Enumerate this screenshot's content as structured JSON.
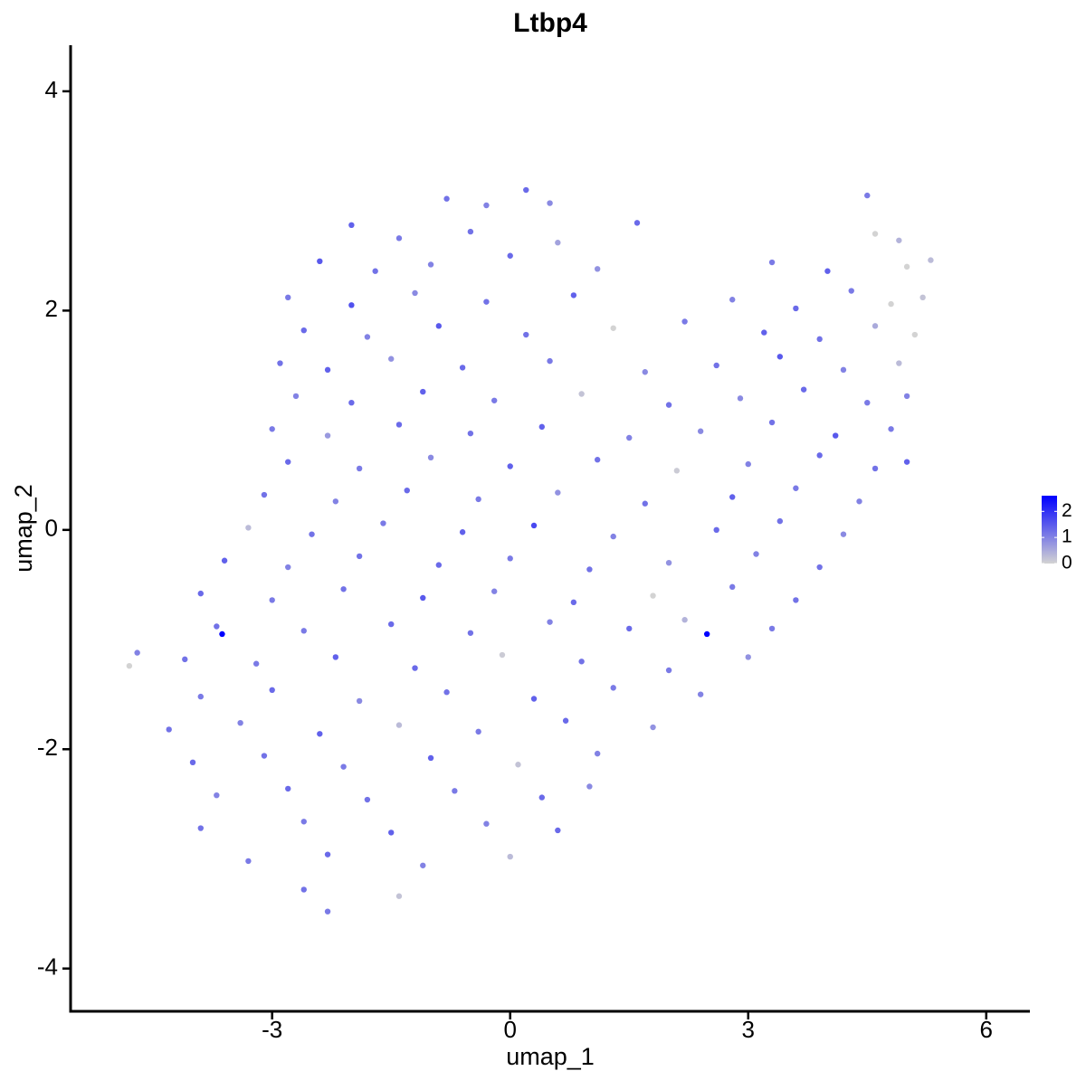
{
  "chart_data": {
    "type": "scatter",
    "title": "Ltbp4",
    "xlabel": "umap_1",
    "ylabel": "umap_2",
    "xlim": [
      -5.54,
      6.55
    ],
    "ylim": [
      -4.39,
      4.42
    ],
    "xticks": [
      -3,
      0,
      3,
      6
    ],
    "yticks": [
      -4,
      -2,
      0,
      2,
      4
    ],
    "color_low": "#d3d3d3",
    "color_high": "#0000ff",
    "color_lim": [
      0,
      2.6
    ],
    "color_ticks": [
      0,
      1,
      2
    ],
    "x": [
      -0.8,
      -0.3,
      0.2,
      0.5,
      4.5,
      -2.0,
      -1.4,
      -0.5,
      0.6,
      1.6,
      4.6,
      4.9,
      -2.4,
      -1.7,
      -1.0,
      0.0,
      1.1,
      3.3,
      4.0,
      5.0,
      5.3,
      -2.8,
      -2.0,
      -1.2,
      -0.3,
      0.8,
      2.8,
      3.6,
      4.3,
      4.8,
      5.2,
      -2.6,
      -1.8,
      -0.9,
      0.2,
      1.3,
      2.2,
      3.2,
      3.9,
      4.6,
      5.1,
      -2.9,
      -2.3,
      -1.5,
      -0.6,
      0.5,
      1.7,
      2.6,
      3.4,
      4.2,
      4.9,
      -2.7,
      -2.0,
      -1.1,
      -0.2,
      0.9,
      2.0,
      2.9,
      3.7,
      4.5,
      5.0,
      -3.0,
      -2.3,
      -1.4,
      -0.5,
      0.4,
      1.5,
      2.4,
      3.3,
      4.1,
      4.8,
      -2.8,
      -1.9,
      -1.0,
      0.0,
      1.1,
      2.1,
      3.0,
      3.9,
      4.6,
      5.0,
      -3.1,
      -2.2,
      -1.3,
      -0.4,
      0.6,
      1.7,
      2.8,
      3.6,
      4.4,
      -3.3,
      -2.5,
      -1.6,
      -0.6,
      0.3,
      1.3,
      2.6,
      3.4,
      4.2,
      -3.6,
      -2.8,
      -1.9,
      -0.9,
      0.0,
      1.0,
      2.0,
      3.1,
      3.9,
      -3.9,
      -3.0,
      -2.1,
      -1.1,
      -0.2,
      0.8,
      1.8,
      2.8,
      3.6,
      -3.7,
      -3.63,
      -2.6,
      -1.5,
      -0.5,
      0.5,
      1.5,
      2.2,
      2.48,
      3.3,
      -4.8,
      -4.7,
      -4.1,
      -3.2,
      -2.2,
      -1.2,
      -0.1,
      0.9,
      2.0,
      3.0,
      -3.9,
      -3.0,
      -1.9,
      -0.8,
      0.3,
      1.3,
      2.4,
      -4.3,
      -3.4,
      -2.4,
      -1.4,
      -0.4,
      0.7,
      1.8,
      -4.0,
      -3.1,
      -2.1,
      -1.0,
      0.1,
      1.1,
      -3.7,
      -2.8,
      -1.8,
      -0.7,
      0.4,
      1.0,
      -3.9,
      -2.6,
      -1.5,
      -0.3,
      0.6,
      -3.3,
      -2.3,
      -1.1,
      0.0,
      -2.6,
      -1.4,
      -2.3
    ],
    "values": [
      3.02,
      2.96,
      3.1,
      2.98,
      3.05,
      2.78,
      2.66,
      2.72,
      2.62,
      2.8,
      2.7,
      2.64,
      2.45,
      2.36,
      2.42,
      2.5,
      2.38,
      2.44,
      2.36,
      2.4,
      2.46,
      2.12,
      2.05,
      2.16,
      2.08,
      2.14,
      2.1,
      2.02,
      2.18,
      2.06,
      2.12,
      1.82,
      1.76,
      1.86,
      1.78,
      1.84,
      1.9,
      1.8,
      1.74,
      1.86,
      1.78,
      1.52,
      1.46,
      1.56,
      1.48,
      1.54,
      1.44,
      1.5,
      1.58,
      1.46,
      1.52,
      1.22,
      1.16,
      1.26,
      1.18,
      1.24,
      1.14,
      1.2,
      1.28,
      1.16,
      1.22,
      0.92,
      0.86,
      0.96,
      0.88,
      0.94,
      0.84,
      0.9,
      0.98,
      0.86,
      0.92,
      0.62,
      0.56,
      0.66,
      0.58,
      0.64,
      0.54,
      0.6,
      0.68,
      0.56,
      0.62,
      0.32,
      0.26,
      0.36,
      0.28,
      0.34,
      0.24,
      0.3,
      0.38,
      0.26,
      0.02,
      -0.04,
      0.06,
      -0.02,
      0.04,
      -0.06,
      0.0,
      0.08,
      -0.04,
      -0.28,
      -0.34,
      -0.24,
      -0.32,
      -0.26,
      -0.36,
      -0.3,
      -0.22,
      -0.34,
      -0.58,
      -0.64,
      -0.54,
      -0.62,
      -0.56,
      -0.66,
      -0.6,
      -0.52,
      -0.64,
      -0.88,
      -0.95,
      -0.92,
      -0.86,
      -0.94,
      -0.84,
      -0.9,
      -0.82,
      -0.95,
      -0.9,
      -1.24,
      -1.12,
      -1.18,
      -1.22,
      -1.16,
      -1.26,
      -1.14,
      -1.2,
      -1.28,
      -1.16,
      -1.52,
      -1.46,
      -1.56,
      -1.48,
      -1.54,
      -1.44,
      -1.5,
      -1.82,
      -1.76,
      -1.86,
      -1.78,
      -1.84,
      -1.74,
      -1.8,
      -2.12,
      -2.06,
      -2.16,
      -2.08,
      -2.14,
      -2.04,
      -2.42,
      -2.36,
      -2.46,
      -2.38,
      -2.44,
      -2.34,
      -2.72,
      -2.66,
      -2.76,
      -2.68,
      -2.74,
      -3.02,
      -2.96,
      -3.06,
      -2.98,
      -3.28,
      -3.34,
      -3.48
    ],
    "color_values": [
      1.2,
      1.0,
      1.3,
      0.9,
      1.1,
      1.4,
      1.1,
      1.2,
      0.6,
      1.3,
      0.0,
      0.4,
      1.5,
      1.2,
      1.0,
      1.3,
      0.8,
      1.1,
      1.4,
      0.0,
      0.3,
      1.1,
      1.6,
      0.9,
      1.2,
      1.4,
      1.0,
      1.3,
      1.1,
      0.0,
      0.2,
      1.3,
      1.0,
      1.5,
      1.2,
      0.0,
      1.1,
      1.4,
      1.2,
      0.5,
      0.0,
      1.2,
      1.4,
      0.8,
      1.3,
      1.1,
      0.9,
      1.2,
      1.5,
      1.0,
      0.3,
      1.0,
      1.3,
      1.4,
      1.1,
      0.2,
      1.2,
      0.9,
      1.3,
      1.1,
      1.0,
      1.1,
      0.7,
      1.3,
      1.2,
      1.4,
      1.0,
      0.9,
      1.2,
      1.5,
      1.1,
      1.3,
      1.1,
      0.9,
      1.4,
      1.2,
      0.1,
      1.0,
      1.3,
      1.2,
      1.4,
      1.2,
      1.0,
      1.3,
      1.1,
      0.8,
      1.2,
      1.4,
      1.1,
      1.0,
      0.3,
      1.2,
      1.1,
      1.4,
      1.7,
      1.0,
      1.3,
      1.2,
      0.9,
      1.4,
      1.0,
      1.2,
      1.3,
      1.1,
      1.2,
      0.8,
      1.0,
      1.2,
      1.3,
      1.1,
      1.2,
      1.5,
      1.0,
      1.3,
      0.0,
      1.1,
      1.2,
      1.2,
      2.6,
      1.1,
      1.3,
      1.2,
      1.0,
      1.3,
      0.4,
      2.6,
      1.1,
      0.0,
      1.0,
      1.2,
      1.1,
      1.4,
      1.3,
      0.1,
      1.2,
      1.1,
      0.8,
      1.1,
      1.3,
      0.9,
      1.2,
      1.4,
      1.1,
      1.0,
      1.2,
      1.0,
      1.4,
      0.3,
      1.1,
      1.3,
      0.8,
      1.3,
      1.2,
      1.1,
      1.4,
      0.2,
      1.0,
      1.0,
      1.3,
      1.2,
      1.1,
      1.3,
      0.9,
      1.2,
      1.1,
      1.4,
      1.0,
      1.3,
      1.1,
      1.3,
      1.0,
      0.3,
      1.2,
      0.2,
      1.1
    ]
  }
}
